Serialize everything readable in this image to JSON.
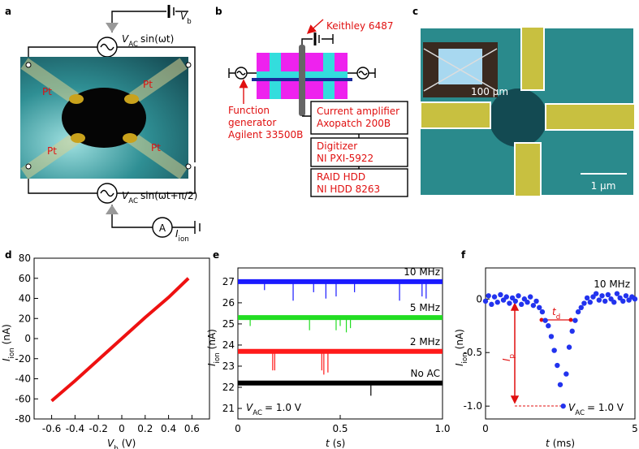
{
  "panel_labels": [
    "a",
    "b",
    "c",
    "d",
    "e",
    "f"
  ],
  "panel_a": {
    "vb": {
      "symbol": "V",
      "sub": "b"
    },
    "vac_top": {
      "symbol": "V",
      "sub": "AC",
      "text": "sin(ωt)"
    },
    "vac_bottom": {
      "symbol": "V",
      "sub": "AC",
      "text": "sin(ωt+π/2)"
    },
    "electrodes": [
      "Pt",
      "Pt",
      "Pt",
      "Pt"
    ],
    "ammeter": "A",
    "current": {
      "symbol": "I",
      "sub": "ion"
    }
  },
  "panel_b": {
    "keithley": "Keithley 6487",
    "function_generator": [
      "Function",
      "generator",
      "Agilent 33500B"
    ],
    "boxes": [
      [
        "Current amplifier",
        "Axopatch 200B"
      ],
      [
        "Digitizer",
        "NI PXI-5922"
      ],
      [
        "RAID HDD",
        "NI HDD 8263"
      ]
    ]
  },
  "panel_c": {
    "inset_scale": "100 μm",
    "scale": "1 μm"
  },
  "chart_data": [
    {
      "type": "line",
      "xlabel": {
        "symbol": "V",
        "sub": "b",
        "unit": "(V)"
      },
      "ylabel": {
        "symbol": "I",
        "sub": "ion",
        "unit": "(nA)"
      },
      "x": [
        -0.6,
        -0.4,
        -0.2,
        0,
        0.2,
        0.4,
        0.57
      ],
      "values": [
        -62,
        -42,
        -21,
        0,
        21,
        41,
        60
      ],
      "color": "#ee1111",
      "xlim": [
        -0.75,
        0.75
      ],
      "xticks": [
        -0.6,
        -0.4,
        -0.2,
        0,
        0.2,
        0.4,
        0.6
      ],
      "ylim": [
        -80,
        80
      ],
      "yticks": [
        -80,
        -60,
        -40,
        -20,
        0,
        20,
        40,
        60,
        80
      ]
    },
    {
      "type": "events",
      "xlabel": {
        "symbol": "t",
        "unit": "(s)"
      },
      "ylabel": {
        "symbol": "I",
        "sub": "ion",
        "unit": "(nA)"
      },
      "annotation": {
        "symbol": "V",
        "sub": "AC",
        "text": "= 1.0 V"
      },
      "xlim": [
        0,
        1
      ],
      "xticks": [
        0,
        0.5,
        {
          "value": 1,
          "label": "1.0"
        }
      ],
      "ylim": [
        20.5,
        27.65
      ],
      "yticks": [
        21,
        22,
        23,
        24,
        25,
        26,
        27
      ],
      "series": [
        {
          "name": "10 MHz",
          "color": "#1a1aff",
          "baseline": 27.0,
          "x": [
            0.13,
            0.27,
            0.37,
            0.43,
            0.48,
            0.57,
            0.79,
            0.9,
            0.92
          ],
          "values": [
            26.6,
            26.1,
            26.5,
            26.2,
            26.3,
            26.5,
            26.1,
            26.3,
            26.2
          ]
        },
        {
          "name": "5 MHz",
          "color": "#22dd22",
          "baseline": 25.3,
          "x": [
            0.06,
            0.35,
            0.48,
            0.5,
            0.53,
            0.55
          ],
          "values": [
            24.9,
            24.7,
            24.7,
            24.9,
            24.6,
            24.8
          ]
        },
        {
          "name": "2 MHz",
          "color": "#ff1a1a",
          "baseline": 23.7,
          "x": [
            0.17,
            0.18,
            0.41,
            0.42,
            0.44
          ],
          "values": [
            22.8,
            22.8,
            22.8,
            22.6,
            22.7
          ]
        },
        {
          "name": "No AC",
          "color": "#000000",
          "baseline": 22.2,
          "x": [
            0.65
          ],
          "values": [
            21.6
          ]
        }
      ]
    },
    {
      "type": "scatter",
      "xlabel": {
        "symbol": "t",
        "unit": "(ms)"
      },
      "ylabel": {
        "symbol": "I",
        "sub": "ion",
        "unit": "(nA)"
      },
      "annotations": {
        "td": {
          "symbol": "t",
          "sub": "d"
        },
        "ip": {
          "symbol": "I",
          "sub": "p"
        },
        "vac": {
          "symbol": "V",
          "sub": "AC",
          "text": "= 1.0 V"
        }
      },
      "xlim": [
        0,
        5
      ],
      "xticks": [
        0,
        5
      ],
      "ylim": [
        -1.12,
        0.29
      ],
      "yticks": [
        0,
        -0.5,
        {
          "value": -1,
          "label": "-1.0"
        }
      ],
      "series": [
        {
          "name": "10 MHz",
          "color": "#2233ee",
          "x": [
            0,
            0.1,
            0.2,
            0.3,
            0.4,
            0.5,
            0.6,
            0.7,
            0.8,
            0.9,
            1.0,
            1.1,
            1.2,
            1.3,
            1.4,
            1.5,
            1.6,
            1.7,
            1.8,
            1.9,
            2.0,
            2.1,
            2.2,
            2.3,
            2.4,
            2.5,
            2.6,
            2.7,
            2.8,
            2.9,
            3.0,
            3.1,
            3.2,
            3.3,
            3.4,
            3.5,
            3.6,
            3.7,
            3.8,
            3.9,
            4.0,
            4.1,
            4.2,
            4.3,
            4.4,
            4.5,
            4.6,
            4.7,
            4.8,
            4.9,
            5.0
          ],
          "values": [
            -0.02,
            0.03,
            -0.05,
            0.02,
            -0.03,
            0.04,
            -0.01,
            0.02,
            -0.04,
            0.01,
            -0.02,
            0.03,
            -0.05,
            0,
            -0.03,
            0.02,
            -0.06,
            -0.02,
            -0.08,
            -0.12,
            -0.2,
            -0.25,
            -0.35,
            -0.48,
            -0.62,
            -0.8,
            -1.0,
            -0.7,
            -0.45,
            -0.3,
            -0.2,
            -0.12,
            -0.08,
            -0.04,
            0.01,
            -0.03,
            0.02,
            0.05,
            -0.01,
            0.03,
            -0.02,
            0.04,
            0,
            -0.03,
            0.05,
            0.01,
            -0.02,
            0.03,
            -0.01,
            0.02,
            0
          ]
        }
      ]
    }
  ]
}
